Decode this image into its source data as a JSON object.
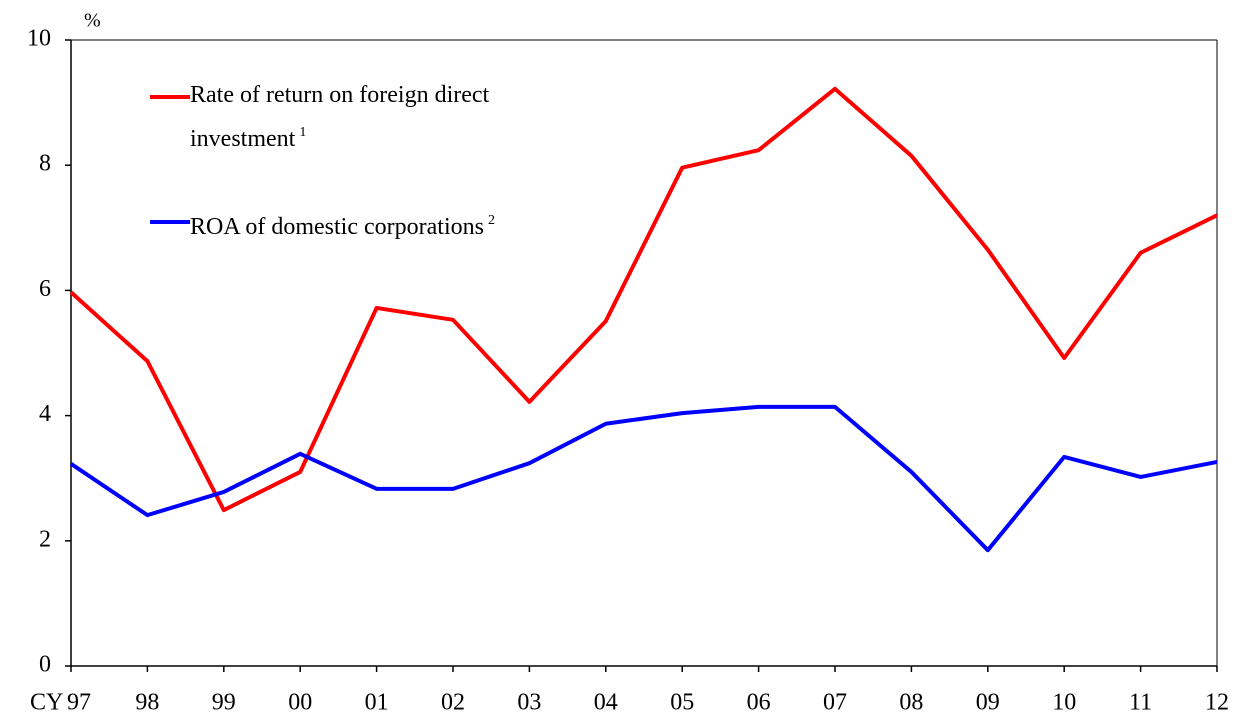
{
  "chart_data": {
    "type": "line",
    "y_unit": "%",
    "x_label": "CY",
    "categories": [
      "97",
      "98",
      "99",
      "00",
      "01",
      "02",
      "03",
      "04",
      "05",
      "06",
      "07",
      "08",
      "09",
      "10",
      "11",
      "12"
    ],
    "series": [
      {
        "name": "Rate of return on foreign direct investment",
        "footnote": "1",
        "color": "#ff0000",
        "values": [
          5.97,
          4.87,
          2.49,
          3.1,
          5.72,
          5.53,
          4.22,
          5.51,
          7.96,
          8.24,
          9.22,
          8.15,
          6.65,
          4.92,
          6.6,
          7.2
        ]
      },
      {
        "name": "ROA of domestic corporations",
        "footnote": "2",
        "color": "#0000ff",
        "values": [
          3.23,
          2.41,
          2.78,
          3.39,
          2.83,
          2.83,
          3.24,
          3.87,
          4.04,
          4.14,
          4.14,
          3.1,
          1.85,
          3.34,
          3.02,
          3.26
        ]
      }
    ],
    "ylim": [
      0,
      10
    ],
    "yticks": [
      0,
      2,
      4,
      6,
      8,
      10
    ],
    "grid": false
  }
}
